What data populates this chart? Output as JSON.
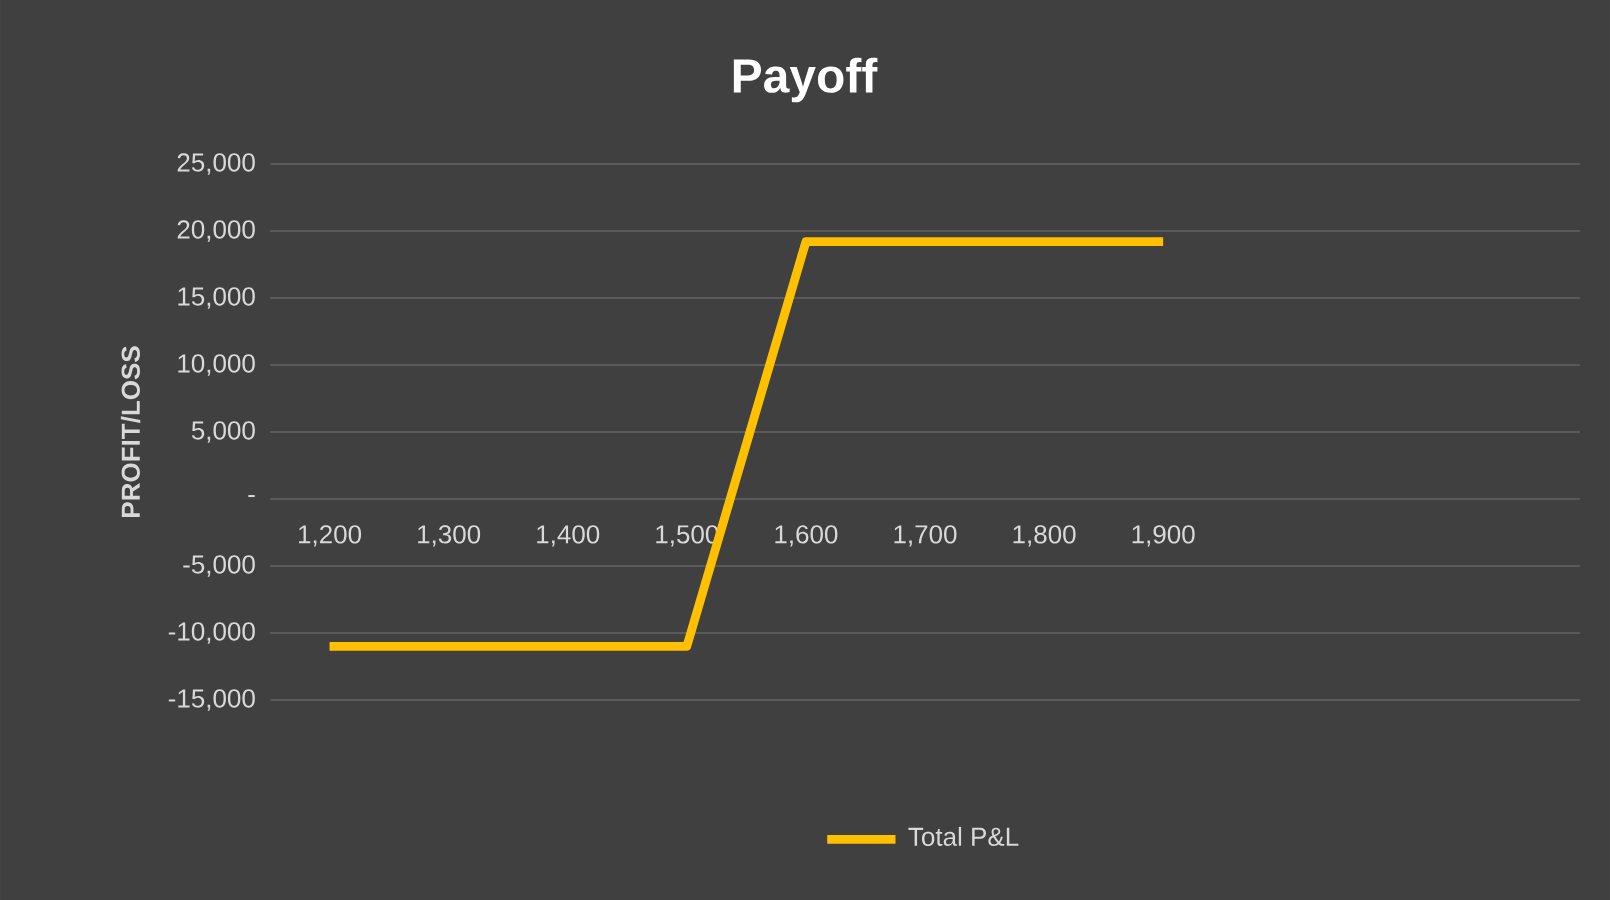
{
  "chart_data": {
    "type": "line",
    "title": "Payoff",
    "ylabel": "PROFIT/LOSS",
    "categories": [
      "1,200",
      "1,300",
      "1,400",
      "1,500",
      "1,600",
      "1,700",
      "1,800",
      "1,900",
      null,
      null,
      null
    ],
    "series": [
      {
        "name": "Total P&L",
        "color": "#ffc000",
        "values": [
          -11000,
          -11000,
          -11000,
          -11000,
          19200,
          19200,
          19200,
          19200,
          null,
          null,
          null
        ]
      }
    ],
    "ylim": [
      -15000,
      25000
    ],
    "yticks": [
      {
        "value": -15000,
        "label": "-15,000"
      },
      {
        "value": -10000,
        "label": "-10,000"
      },
      {
        "value": -5000,
        "label": "-5,000"
      },
      {
        "value": 0,
        "label": "-"
      },
      {
        "value": 5000,
        "label": "5,000"
      },
      {
        "value": 10000,
        "label": "10,000"
      },
      {
        "value": 15000,
        "label": "15,000"
      },
      {
        "value": 20000,
        "label": "20,000"
      },
      {
        "value": 25000,
        "label": "25,000"
      }
    ],
    "grid": "y",
    "legend": "bottom"
  }
}
